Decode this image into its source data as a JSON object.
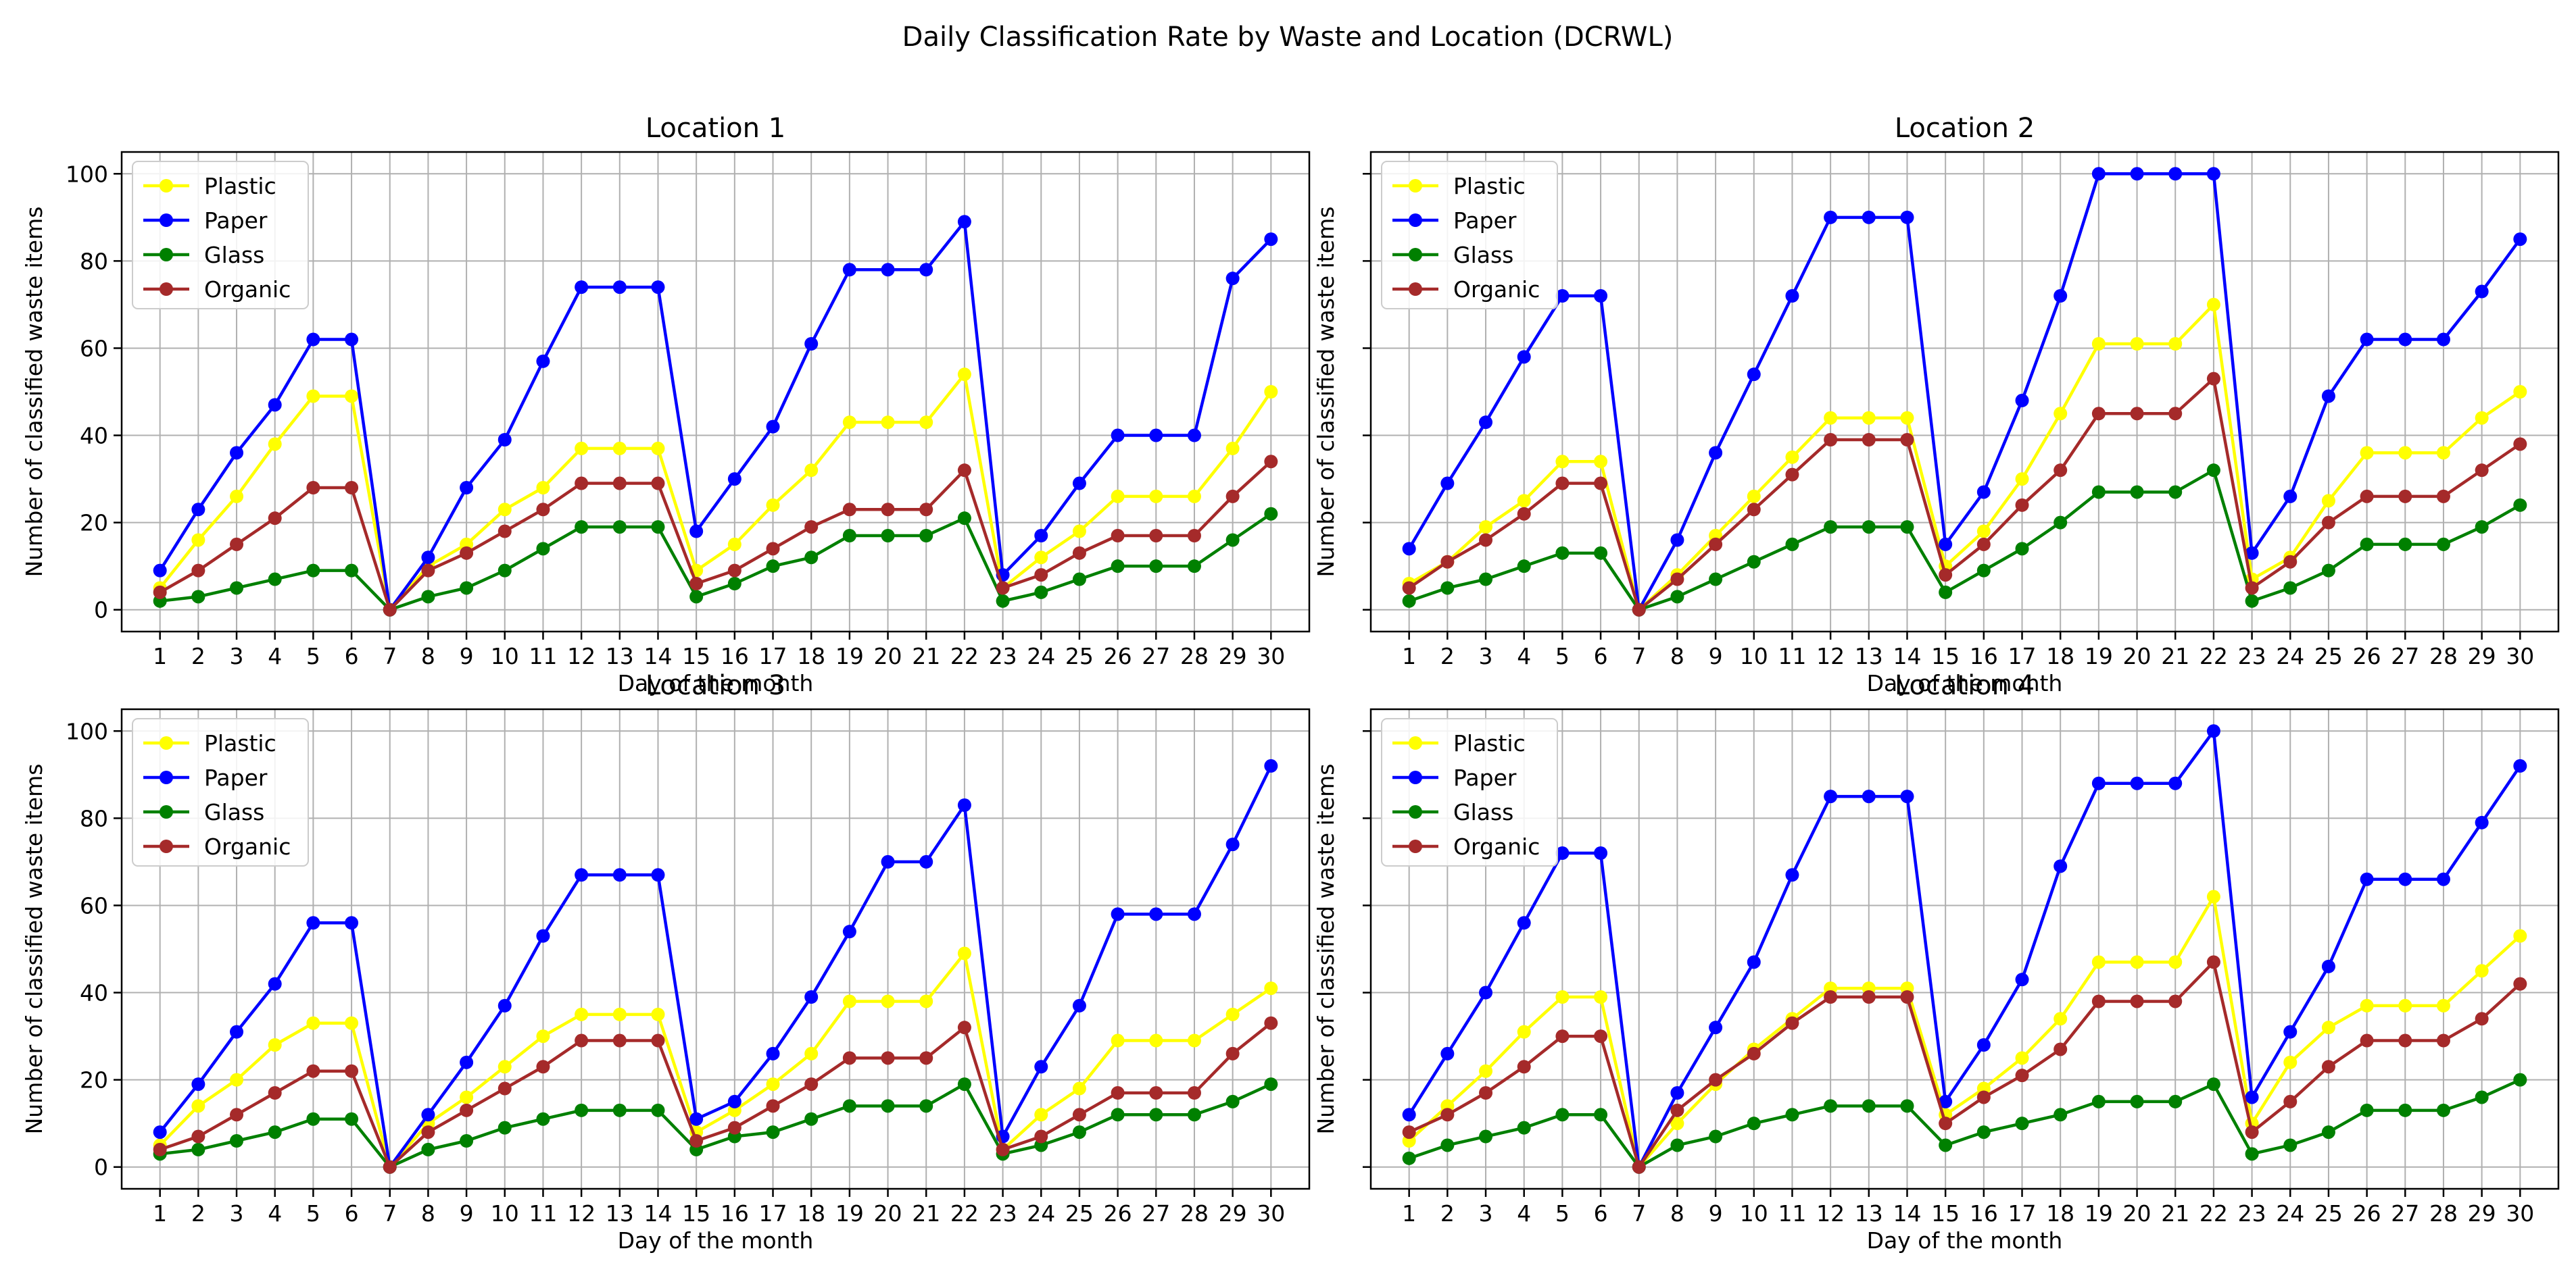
{
  "chart_data": {
    "title": "Daily Classification Rate by Waste and Location (DCRWL)",
    "type": "line",
    "colors": {
      "Plastic": "#ffff00",
      "Paper": "#0000ff",
      "Glass": "#008000",
      "Organic": "#a52a2a"
    },
    "x": [
      1,
      2,
      3,
      4,
      5,
      6,
      7,
      8,
      9,
      10,
      11,
      12,
      13,
      14,
      15,
      16,
      17,
      18,
      19,
      20,
      21,
      22,
      23,
      24,
      25,
      26,
      27,
      28,
      29,
      30
    ],
    "xlabel": "Day of the month",
    "ylabel": "Number of classified waste items",
    "yticks": [
      0,
      20,
      40,
      60,
      80,
      100
    ],
    "ylim": [
      -5,
      105
    ],
    "xlim": [
      0,
      31
    ],
    "legend_position": "upper-left",
    "grid": true,
    "panels": [
      {
        "title": "Location 1",
        "series": [
          {
            "name": "Plastic",
            "values": [
              5,
              16,
              26,
              38,
              49,
              49,
              0,
              10,
              15,
              23,
              28,
              37,
              37,
              37,
              9,
              15,
              24,
              32,
              43,
              43,
              43,
              54,
              5,
              12,
              18,
              26,
              26,
              26,
              37,
              50
            ]
          },
          {
            "name": "Paper",
            "values": [
              9,
              23,
              36,
              47,
              62,
              62,
              0,
              12,
              28,
              39,
              57,
              74,
              74,
              74,
              18,
              30,
              42,
              61,
              78,
              78,
              78,
              89,
              8,
              17,
              29,
              40,
              40,
              40,
              76,
              85
            ]
          },
          {
            "name": "Glass",
            "values": [
              2,
              3,
              5,
              7,
              9,
              9,
              0,
              3,
              5,
              9,
              14,
              19,
              19,
              19,
              3,
              6,
              10,
              12,
              17,
              17,
              17,
              21,
              2,
              4,
              7,
              10,
              10,
              10,
              16,
              22
            ]
          },
          {
            "name": "Organic",
            "values": [
              4,
              9,
              15,
              21,
              28,
              28,
              0,
              9,
              13,
              18,
              23,
              29,
              29,
              29,
              6,
              9,
              14,
              19,
              23,
              23,
              23,
              32,
              5,
              8,
              13,
              17,
              17,
              17,
              26,
              34
            ]
          }
        ]
      },
      {
        "title": "Location 2",
        "series": [
          {
            "name": "Plastic",
            "values": [
              6,
              11,
              19,
              25,
              34,
              34,
              0,
              8,
              17,
              26,
              35,
              44,
              44,
              44,
              10,
              18,
              30,
              45,
              61,
              61,
              61,
              70,
              7,
              12,
              25,
              36,
              36,
              36,
              44,
              50
            ]
          },
          {
            "name": "Paper",
            "values": [
              14,
              29,
              43,
              58,
              72,
              72,
              0,
              16,
              36,
              54,
              72,
              90,
              90,
              90,
              15,
              27,
              48,
              72,
              100,
              100,
              100,
              100,
              13,
              26,
              49,
              62,
              62,
              62,
              73,
              85
            ]
          },
          {
            "name": "Glass",
            "values": [
              2,
              5,
              7,
              10,
              13,
              13,
              0,
              3,
              7,
              11,
              15,
              19,
              19,
              19,
              4,
              9,
              14,
              20,
              27,
              27,
              27,
              32,
              2,
              5,
              9,
              15,
              15,
              15,
              19,
              24
            ]
          },
          {
            "name": "Organic",
            "values": [
              5,
              11,
              16,
              22,
              29,
              29,
              0,
              7,
              15,
              23,
              31,
              39,
              39,
              39,
              8,
              15,
              24,
              32,
              45,
              45,
              45,
              53,
              5,
              11,
              20,
              26,
              26,
              26,
              32,
              38
            ]
          }
        ]
      },
      {
        "title": "Location 3",
        "series": [
          {
            "name": "Plastic",
            "values": [
              5,
              14,
              20,
              28,
              33,
              33,
              0,
              10,
              16,
              23,
              30,
              35,
              35,
              35,
              8,
              13,
              19,
              26,
              38,
              38,
              38,
              49,
              4,
              12,
              18,
              29,
              29,
              29,
              35,
              41
            ]
          },
          {
            "name": "Paper",
            "values": [
              8,
              19,
              31,
              42,
              56,
              56,
              0,
              12,
              24,
              37,
              53,
              67,
              67,
              67,
              11,
              15,
              26,
              39,
              54,
              70,
              70,
              83,
              7,
              23,
              37,
              58,
              58,
              58,
              74,
              92
            ]
          },
          {
            "name": "Glass",
            "values": [
              3,
              4,
              6,
              8,
              11,
              11,
              0,
              4,
              6,
              9,
              11,
              13,
              13,
              13,
              4,
              7,
              8,
              11,
              14,
              14,
              14,
              19,
              3,
              5,
              8,
              12,
              12,
              12,
              15,
              19
            ]
          },
          {
            "name": "Organic",
            "values": [
              4,
              7,
              12,
              17,
              22,
              22,
              0,
              8,
              13,
              18,
              23,
              29,
              29,
              29,
              6,
              9,
              14,
              19,
              25,
              25,
              25,
              32,
              4,
              7,
              12,
              17,
              17,
              17,
              26,
              33
            ]
          }
        ]
      },
      {
        "title": "Location 4",
        "series": [
          {
            "name": "Plastic",
            "values": [
              6,
              14,
              22,
              31,
              39,
              39,
              0,
              10,
              19,
              27,
              34,
              41,
              41,
              41,
              12,
              18,
              25,
              34,
              47,
              47,
              47,
              62,
              10,
              24,
              32,
              37,
              37,
              37,
              45,
              53
            ]
          },
          {
            "name": "Paper",
            "values": [
              12,
              26,
              40,
              56,
              72,
              72,
              0,
              17,
              32,
              47,
              67,
              85,
              85,
              85,
              15,
              28,
              43,
              69,
              88,
              88,
              88,
              100,
              16,
              31,
              46,
              66,
              66,
              66,
              79,
              92
            ]
          },
          {
            "name": "Glass",
            "values": [
              2,
              5,
              7,
              9,
              12,
              12,
              0,
              5,
              7,
              10,
              12,
              14,
              14,
              14,
              5,
              8,
              10,
              12,
              15,
              15,
              15,
              19,
              3,
              5,
              8,
              13,
              13,
              13,
              16,
              20
            ]
          },
          {
            "name": "Organic",
            "values": [
              8,
              12,
              17,
              23,
              30,
              30,
              0,
              13,
              20,
              26,
              33,
              39,
              39,
              39,
              10,
              16,
              21,
              27,
              38,
              38,
              38,
              47,
              8,
              15,
              23,
              29,
              29,
              29,
              34,
              42
            ]
          }
        ]
      }
    ]
  }
}
